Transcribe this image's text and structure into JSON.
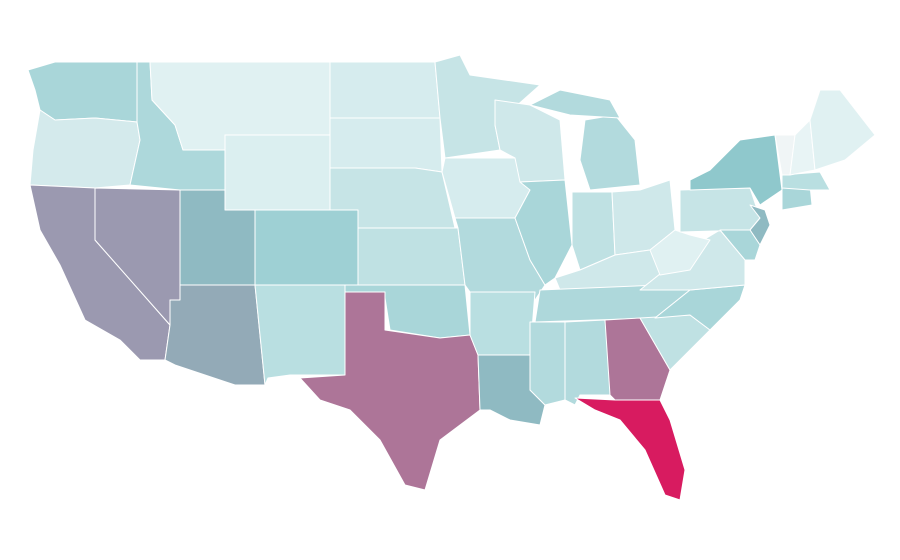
{
  "regions": [
    {
      "color": "#a9d6d9"
    },
    {
      "color": "#d4eaec"
    },
    {
      "color": "#9b99b0"
    },
    {
      "color": "#9b99b0"
    },
    {
      "color": "#add8db"
    },
    {
      "color": "#e0f1f2"
    },
    {
      "color": "#dbeff0"
    },
    {
      "color": "#8fbac2"
    },
    {
      "color": "#93aab7"
    },
    {
      "color": "#9ed0d4"
    },
    {
      "color": "#b9dfe1"
    },
    {
      "color": "#d6ecee"
    },
    {
      "color": "#d6ecee"
    },
    {
      "color": "#c6e4e6"
    },
    {
      "color": "#bfe1e3"
    },
    {
      "color": "#a9d6d9"
    },
    {
      "color": "#ad7598"
    },
    {
      "color": "#c6e4e6"
    },
    {
      "color": "#d6ecee"
    },
    {
      "color": "#b2dadd"
    },
    {
      "color": "#b9dfe1"
    },
    {
      "color": "#8fbac2"
    },
    {
      "color": "#cfe8ea"
    },
    {
      "color": "#a9d6d9"
    },
    {
      "color": "#b2dadd"
    },
    {
      "color": "#b2dadd"
    },
    {
      "color": "#bfe1e3"
    },
    {
      "color": "#cfe8ea"
    },
    {
      "color": "#cfe8ea"
    },
    {
      "color": "#aed8db"
    },
    {
      "color": "#b2dadd"
    },
    {
      "color": "#b2dadd"
    },
    {
      "color": "#ad7598"
    },
    {
      "color": "#d81b60"
    },
    {
      "color": "#bfe1e3"
    },
    {
      "color": "#a9d6d9"
    },
    {
      "color": "#cfe8ea"
    },
    {
      "color": "#e0f1f2"
    },
    {
      "color": "#c6e4e6"
    },
    {
      "color": "#8fc8cc"
    },
    {
      "color": "#8fbac2"
    },
    {
      "color": "#a9d6d9"
    },
    {
      "color": "#a9d6d9"
    },
    {
      "color": "#b9dfe1"
    },
    {
      "color": "#f0f5f6"
    },
    {
      "color": "#e8f4f5"
    },
    {
      "color": "#e0f1f2"
    }
  ]
}
